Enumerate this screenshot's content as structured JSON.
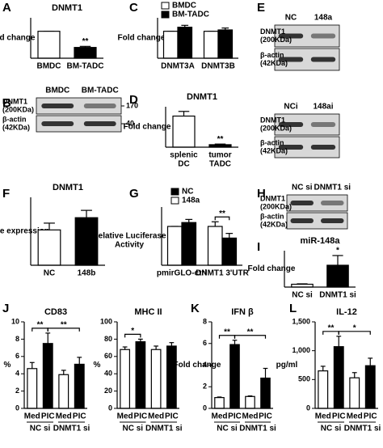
{
  "chart_data": [
    {
      "type": "bar",
      "panel": "A",
      "title": "DNMT1",
      "ylabel": "Fold change",
      "categories": [
        "BMDC",
        "BM-TADC"
      ],
      "values": [
        1.0,
        0.4
      ],
      "errors": [
        0,
        0.04
      ],
      "colors": [
        "#ffffff",
        "#000000"
      ],
      "ylim": [
        0,
        1.5
      ],
      "significance": [
        {
          "text": "**",
          "at": 1
        }
      ]
    },
    {
      "type": "bar",
      "panel": "C",
      "ylabel": "Fold change",
      "categories": [
        "DNMT3A",
        "DNMT3B"
      ],
      "series": [
        {
          "name": "BMDC",
          "color": "#ffffff",
          "values": [
            1.0,
            1.0
          ],
          "errors": [
            0,
            0
          ]
        },
        {
          "name": "BM-TADC",
          "color": "#000000",
          "values": [
            1.15,
            1.05
          ],
          "errors": [
            0.07,
            0.07
          ]
        }
      ],
      "ylim": [
        0,
        1.5
      ]
    },
    {
      "type": "bar",
      "panel": "D",
      "title": "DNMT1",
      "ylabel": "Fold change",
      "categories": [
        [
          "splenic",
          "DC"
        ],
        [
          "tumor",
          "TADC"
        ]
      ],
      "values": [
        1.0,
        0.08
      ],
      "errors": [
        0.15,
        0.02
      ],
      "colors": [
        "#ffffff",
        "#000000"
      ],
      "ylim": [
        0,
        1.3
      ],
      "significance": [
        {
          "text": "**",
          "at": 1
        }
      ]
    },
    {
      "type": "bar",
      "panel": "F",
      "title": "DNMT1",
      "ylabel": "Relative expression",
      "categories": [
        "NC",
        "148b"
      ],
      "values": [
        0.013,
        0.0175
      ],
      "errors": [
        0.0025,
        0.0027
      ],
      "colors": [
        "#ffffff",
        "#000000"
      ],
      "ylim": [
        0,
        0.025
      ]
    },
    {
      "type": "bar",
      "panel": "G",
      "ylabel": [
        "Relative Luciferase",
        "Activity"
      ],
      "categories": [
        "pmirGLO-ctrl",
        "DNMT1 3'UTR"
      ],
      "series": [
        {
          "name": "148a",
          "color": "#ffffff",
          "values": [
            1.0,
            1.0
          ],
          "errors": [
            0,
            0.12
          ]
        },
        {
          "name": "NC",
          "color": "#000000",
          "values": [
            1.1,
            0.7
          ],
          "errors": [
            0.08,
            0.12
          ]
        }
      ],
      "legend_reverse": true,
      "ylim": [
        0,
        1.5
      ],
      "significance": [
        {
          "text": "**",
          "from": 2,
          "to": 3
        }
      ]
    },
    {
      "type": "bar",
      "panel": "I",
      "title": "miR-148a",
      "ylabel": "Fold change",
      "categories": [
        "NC  si",
        "DNMT1 si"
      ],
      "values": [
        0.7,
        5.4
      ],
      "errors": [
        0.1,
        2.4
      ],
      "colors": [
        "#ffffff",
        "#000000"
      ],
      "ylim": [
        0,
        9
      ],
      "significance": [
        {
          "text": "*",
          "at": 1
        }
      ]
    },
    {
      "type": "bar",
      "panel": "J",
      "title": "CD83",
      "ylabel": "%",
      "categories": [
        "Med",
        "PIC",
        "Med",
        "PIC"
      ],
      "groups": [
        "NC si",
        "DNMT1 si"
      ],
      "values": [
        4.6,
        7.5,
        3.9,
        5.1
      ],
      "errors": [
        0.7,
        1.2,
        0.5,
        0.8
      ],
      "colors": [
        "#ffffff",
        "#000000",
        "#ffffff",
        "#000000"
      ],
      "ylim": [
        0,
        10
      ],
      "yticks": [
        0,
        2,
        4,
        6,
        8,
        10
      ],
      "significance": [
        {
          "text": "**",
          "from": 0,
          "to": 1
        },
        {
          "text": "**",
          "from": 1,
          "to": 3
        }
      ]
    },
    {
      "type": "bar",
      "title": "MHC II",
      "ylabel": "%",
      "categories": [
        "Med",
        "PIC",
        "Med",
        "PIC"
      ],
      "groups": [
        "NC si",
        "DNMT1 si"
      ],
      "values": [
        68,
        77,
        68,
        72
      ],
      "errors": [
        3,
        3,
        4,
        4
      ],
      "colors": [
        "#ffffff",
        "#000000",
        "#ffffff",
        "#000000"
      ],
      "ylim": [
        0,
        100
      ],
      "yticks": [
        0,
        20,
        40,
        60,
        80,
        100
      ],
      "significance": [
        {
          "text": "*",
          "from": 0,
          "to": 1
        }
      ]
    },
    {
      "type": "bar",
      "panel": "K",
      "title": "IFN β",
      "ylabel": "Fold change",
      "categories": [
        "Med",
        "PIC",
        "Med",
        "PIC"
      ],
      "groups": [
        "NC si",
        "DNMT1 si"
      ],
      "values": [
        1.0,
        5.9,
        1.1,
        2.8
      ],
      "errors": [
        0.05,
        0.4,
        0.05,
        0.9
      ],
      "colors": [
        "#ffffff",
        "#000000",
        "#ffffff",
        "#000000"
      ],
      "ylim": [
        0,
        8
      ],
      "yticks": [
        0,
        2,
        4,
        6,
        8
      ],
      "significance": [
        {
          "text": "**",
          "from": 0,
          "to": 1
        },
        {
          "text": "**",
          "from": 1,
          "to": 3
        }
      ]
    },
    {
      "type": "bar",
      "panel": "L",
      "title": "IL-12",
      "ylabel": "pg/ml",
      "categories": [
        "Med",
        "PIC",
        "Med",
        "PIC"
      ],
      "groups": [
        "NC si",
        "DNMT1 si"
      ],
      "values": [
        650,
        1070,
        530,
        740
      ],
      "errors": [
        80,
        180,
        90,
        130
      ],
      "colors": [
        "#ffffff",
        "#000000",
        "#ffffff",
        "#000000"
      ],
      "ylim": [
        0,
        1500
      ],
      "yticks": [
        0,
        500,
        {
          "value": 1000,
          "label": "1,000"
        },
        {
          "value": 1500,
          "label": "1,500"
        }
      ],
      "significance": [
        {
          "text": "**",
          "from": 0,
          "to": 1
        },
        {
          "text": "*",
          "from": 1,
          "to": 3
        }
      ]
    }
  ],
  "blots": [
    {
      "panel": "B",
      "lanes": [
        "BMDC",
        "BM-TADC"
      ],
      "rows": [
        {
          "protein": "DNMT1",
          "size": "(200KDa)",
          "marker": "170"
        },
        {
          "protein": "β-actin",
          "size": "(42KDa)",
          "marker": "40"
        }
      ]
    },
    {
      "panel": "E",
      "lanes": [
        "NC",
        "148a"
      ],
      "rows": [
        {
          "protein": "DNMT1",
          "size": "(200KDa)"
        },
        {
          "protein": "β-actin",
          "size": "(42KDa)"
        }
      ]
    },
    {
      "lanes": [
        "NCi",
        "148ai"
      ],
      "rows": [
        {
          "protein": "DNMT1",
          "size": "(200KDa)"
        },
        {
          "protein": "β-actin",
          "size": "(42KDa)"
        }
      ]
    },
    {
      "panel": "H",
      "lanes": [
        "NC si",
        "DNMT1 si"
      ],
      "rows": [
        {
          "protein": "DNMT1",
          "size": "(200KDa)"
        },
        {
          "protein": "β-actin",
          "size": "(42KDa)"
        }
      ]
    }
  ]
}
